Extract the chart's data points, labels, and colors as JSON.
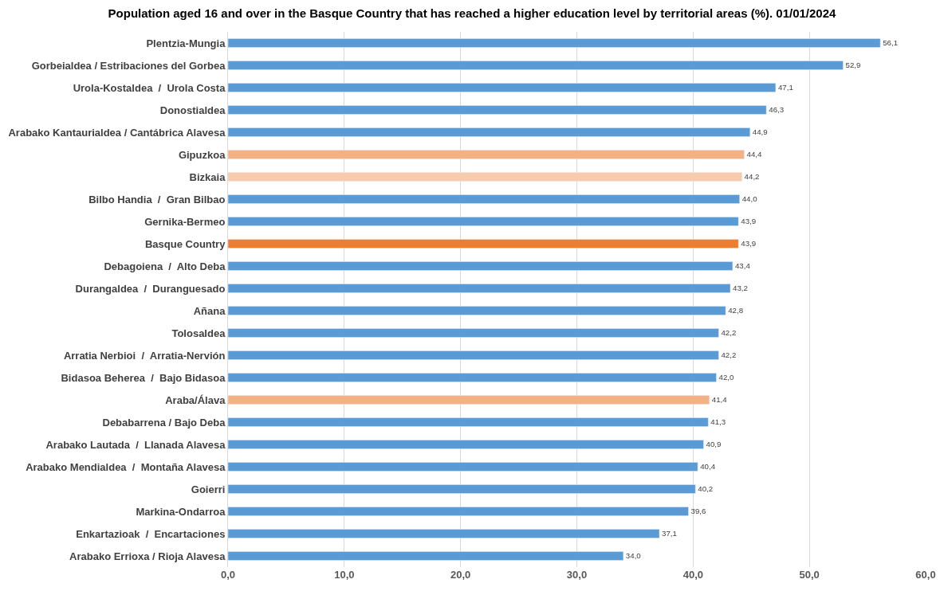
{
  "chart_data": {
    "type": "bar",
    "orientation": "horizontal",
    "title": "Population aged 16 and over in the Basque Country that has reached a higher education level by territorial areas (%). 01/01/2024",
    "categories": [
      "Plentzia-Mungia",
      "Gorbeialdea / Estribaciones del Gorbea",
      "Urola-Kostaldea  /  Urola Costa",
      "Donostialdea",
      "Arabako Kantaurialdea / Cantábrica Alavesa",
      "Gipuzkoa",
      "Bizkaia",
      "Bilbo Handia  /  Gran Bilbao",
      "Gernika-Bermeo",
      "Basque Country",
      "Debagoiena  /  Alto Deba",
      "Durangaldea  /  Duranguesado",
      "Añana",
      "Tolosaldea",
      "Arratia Nerbioi  /  Arratia-Nervión",
      "Bidasoa Beherea  /  Bajo Bidasoa",
      "Araba/Álava",
      "Debabarrena / Bajo Deba",
      "Arabako Lautada  /  Llanada Alavesa",
      "Arabako Mendialdea  /  Montaña Alavesa",
      "Goierri",
      "Markina-Ondarroa",
      "Enkartazioak  /  Encartaciones",
      "Arabako Errioxa / Rioja Alavesa"
    ],
    "values": [
      56.1,
      52.9,
      47.1,
      46.3,
      44.9,
      44.4,
      44.2,
      44.0,
      43.9,
      43.9,
      43.4,
      43.2,
      42.8,
      42.2,
      42.2,
      42.0,
      41.4,
      41.3,
      40.9,
      40.4,
      40.2,
      39.6,
      37.1,
      34.0
    ],
    "value_labels": [
      "56,1",
      "52,9",
      "47,1",
      "46,3",
      "44,9",
      "44,4",
      "44,2",
      "44,0",
      "43,9",
      "43,9",
      "43,4",
      "43,2",
      "42,8",
      "42,2",
      "42,2",
      "42,0",
      "41,4",
      "41,3",
      "40,9",
      "40,4",
      "40,2",
      "39,6",
      "37,1",
      "34,0"
    ],
    "colors": [
      "#5b9bd5",
      "#5b9bd5",
      "#5b9bd5",
      "#5b9bd5",
      "#5b9bd5",
      "#f4b183",
      "#f8cbad",
      "#5b9bd5",
      "#5b9bd5",
      "#ed7d31",
      "#5b9bd5",
      "#5b9bd5",
      "#5b9bd5",
      "#5b9bd5",
      "#5b9bd5",
      "#5b9bd5",
      "#f4b183",
      "#5b9bd5",
      "#5b9bd5",
      "#5b9bd5",
      "#5b9bd5",
      "#5b9bd5",
      "#5b9bd5",
      "#5b9bd5"
    ],
    "xlim": [
      0,
      60
    ],
    "xticks": [
      {
        "value": 0,
        "label": "0,0"
      },
      {
        "value": 10,
        "label": "10,0"
      },
      {
        "value": 20,
        "label": "20,0"
      },
      {
        "value": 30,
        "label": "30,0"
      },
      {
        "value": 40,
        "label": "40,0"
      },
      {
        "value": 50,
        "label": "50,0"
      },
      {
        "value": 60,
        "label": "60,0"
      }
    ],
    "grid": "x"
  }
}
